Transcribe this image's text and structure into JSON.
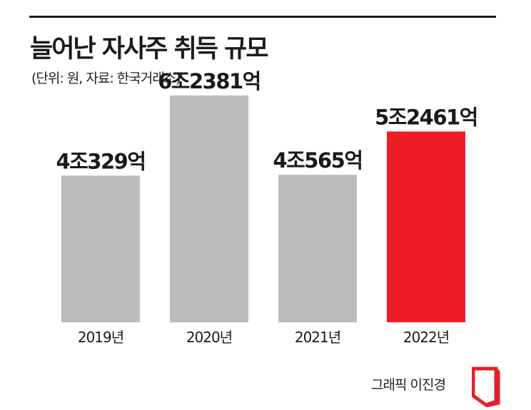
{
  "header": {
    "title": "늘어난 자사주 취득 규모",
    "subtitle": "(단위: 원, 자료: 한국거래소)"
  },
  "footer": {
    "credit": "그래픽 이진경"
  },
  "colors": {
    "bar_default": "#bcbcbf",
    "bar_highlight": "#ee1c25",
    "text": "#1a1a1a",
    "logo": "#e2222b"
  },
  "icons": {
    "logo": "publisher-logo-icon"
  },
  "chart_data": {
    "type": "bar",
    "title": "늘어난 자사주 취득 규모",
    "xlabel": "",
    "ylabel": "",
    "unit": "억 원",
    "categories": [
      "2019년",
      "2020년",
      "2021년",
      "2022년"
    ],
    "values": [
      40329,
      62381,
      40565,
      52461
    ],
    "value_labels": [
      "4조329억",
      "6조2381억",
      "4조565억",
      "5조2461억"
    ],
    "highlight_index": 3,
    "ylim": [
      0,
      70000
    ],
    "grid": false,
    "legend": "none"
  }
}
